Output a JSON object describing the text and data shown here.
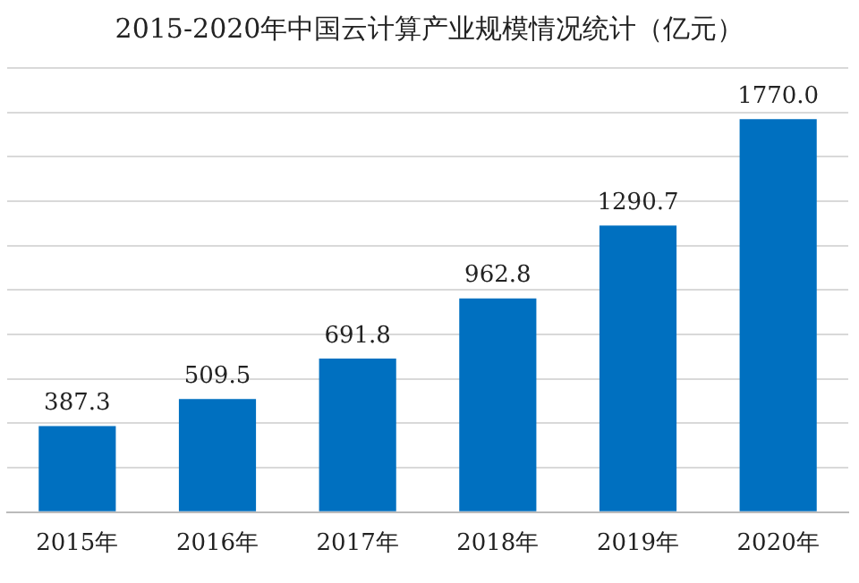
{
  "chart_data": {
    "type": "bar",
    "title": "2015-2020年中国云计算产业规模情况统计（亿元）",
    "categories": [
      "2015年",
      "2016年",
      "2017年",
      "2018年",
      "2019年",
      "2020年"
    ],
    "values": [
      387.3,
      509.5,
      691.8,
      962.8,
      1290.7,
      1770.0
    ],
    "value_labels": [
      "387.3",
      "509.5",
      "691.8",
      "962.8",
      "1290.7",
      "1770.0"
    ],
    "color": "#0070c0",
    "ylim": [
      0,
      2000
    ],
    "yticks": [
      {
        "value": 0,
        "label": null
      },
      {
        "value": 200,
        "label": null
      },
      {
        "value": 400,
        "label": null
      },
      {
        "value": 600,
        "label": null
      },
      {
        "value": 800,
        "label": null
      },
      {
        "value": 1000,
        "label": null
      },
      {
        "value": 1200,
        "label": null
      },
      {
        "value": 1400,
        "label": null
      },
      {
        "value": 1600,
        "label": null
      },
      {
        "value": 1800,
        "label": null
      },
      {
        "value": 2000,
        "label": null
      }
    ],
    "grid": "y",
    "tick_labels": "x",
    "legend": false
  }
}
